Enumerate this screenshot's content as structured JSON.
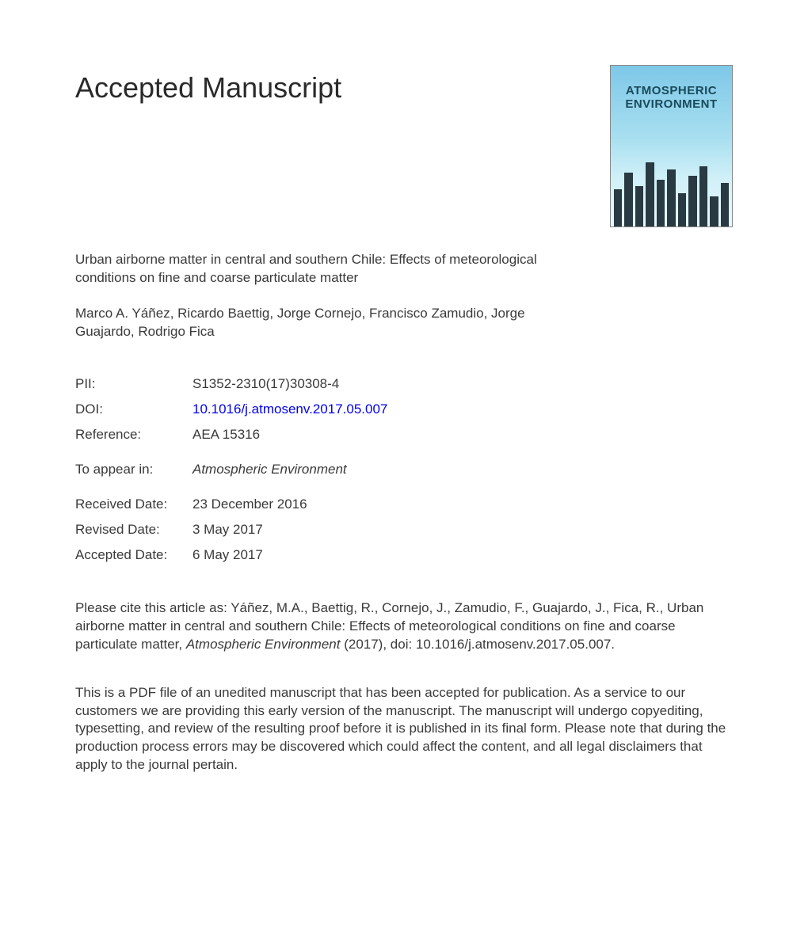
{
  "heading": "Accepted Manuscript",
  "cover": {
    "line1": "ATMOSPHERIC",
    "line2": "ENVIRONMENT"
  },
  "article_title": "Urban airborne matter in central and southern Chile: Effects of meteorological conditions on fine and coarse particulate matter",
  "authors": "Marco A. Yáñez, Ricardo Baettig, Jorge Cornejo, Francisco Zamudio, Jorge Guajardo, Rodrigo Fica",
  "meta": {
    "pii_label": "PII:",
    "pii_value": "S1352-2310(17)30308-4",
    "doi_label": "DOI:",
    "doi_value": "10.1016/j.atmosenv.2017.05.007",
    "reference_label": "Reference:",
    "reference_value": "AEA 15316",
    "appear_label": "To appear in:",
    "appear_value": "Atmospheric Environment",
    "received_label": "Received Date:",
    "received_value": "23 December 2016",
    "revised_label": "Revised Date:",
    "revised_value": "3 May 2017",
    "accepted_label": "Accepted Date:",
    "accepted_value": "6 May 2017"
  },
  "citation_prefix": "Please cite this article as: Yáñez, M.A., Baettig, R., Cornejo, J., Zamudio, F., Guajardo, J., Fica, R., Urban airborne matter in central and southern Chile: Effects of meteorological conditions on fine and coarse particulate matter, ",
  "citation_journal": "Atmospheric Environment",
  "citation_suffix": " (2017), doi: 10.1016/j.atmosenv.2017.05.007.",
  "disclaimer": "This is a PDF file of an unedited manuscript that has been accepted for publication. As a service to our customers we are providing this early version of the manuscript. The manuscript will undergo copyediting, typesetting, and review of the resulting proof before it is published in its final form. Please note that during the production process errors may be discovered which could affect the content, and all legal disclaimers that apply to the journal pertain.",
  "style": {
    "page_bg": "#ffffff",
    "text_color": "#3a3a3a",
    "heading_color": "#2a2a2a",
    "heading_fontsize": 36,
    "body_fontsize": 17,
    "link_color": "#0000ee",
    "cover_gradient_top": "#7ec8e8",
    "cover_gradient_bottom": "#e8f8fc",
    "cover_title_color": "#1a4a5a",
    "cover_building_color": "#2a3a42",
    "building_heights_pct": [
      55,
      80,
      60,
      95,
      70,
      85,
      50,
      75,
      90,
      45,
      65
    ]
  }
}
